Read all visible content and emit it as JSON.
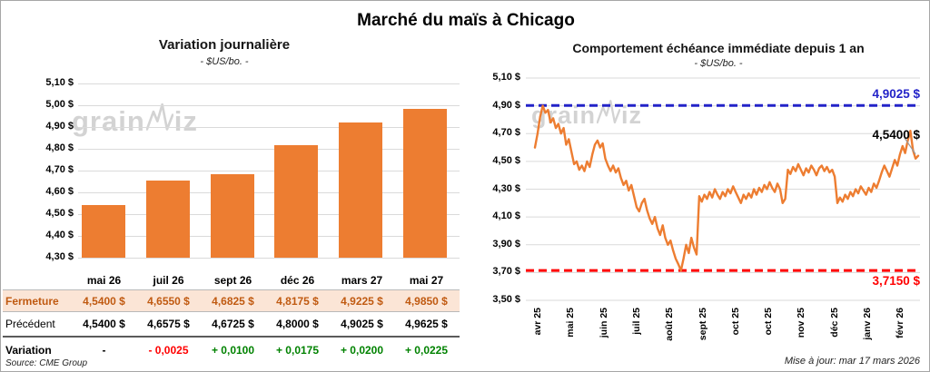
{
  "page": {
    "title": "Marché du maïs à Chicago",
    "source": "Source: CME Group",
    "updated": "Mise à jour: mar 17 mars 2026",
    "watermark": "grainwiz"
  },
  "table": {
    "columns": [
      "mai 26",
      "juil 26",
      "sept 26",
      "déc 26",
      "mars 27",
      "mai 27"
    ],
    "rows": [
      {
        "key": "fermeture",
        "label": "Fermeture",
        "values": [
          "4,5400 $",
          "4,6550 $",
          "4,6825 $",
          "4,8175 $",
          "4,9225 $",
          "4,9850 $"
        ]
      },
      {
        "key": "precedent",
        "label": "Précédent",
        "values": [
          "4,5400 $",
          "4,6575 $",
          "4,6725 $",
          "4,8000 $",
          "4,9025 $",
          "4,9625 $"
        ]
      },
      {
        "key": "variation",
        "label": "Variation",
        "values": [
          "-",
          "- 0,0025",
          "+ 0,0100",
          "+ 0,0175",
          "+ 0,0200",
          "+ 0,0225"
        ],
        "value_colors": [
          "#000000",
          "#FF0000",
          "#008200",
          "#008200",
          "#008200",
          "#008200"
        ]
      }
    ]
  },
  "chart_data": [
    {
      "type": "bar",
      "title": "Variation journalière",
      "subtitle": "- $US/bo. -",
      "categories": [
        "mai 26",
        "juil 26",
        "sept 26",
        "déc 26",
        "mars 27",
        "mai 27"
      ],
      "values": [
        4.54,
        4.655,
        4.6825,
        4.8175,
        4.9225,
        4.985
      ],
      "ylim": [
        4.3,
        5.1
      ],
      "ytick_step": 0.1,
      "bar_color": "#ED7D31",
      "grid": true,
      "currency_suffix": " $"
    },
    {
      "type": "line",
      "title": "Comportement échéance immédiate depuis 1 an",
      "subtitle": "- $US/bo. -",
      "x_labels": [
        "avr 25",
        "mai 25",
        "juin 25",
        "juil 25",
        "août 25",
        "sept 25",
        "oct 25",
        "oct 25",
        "nov 25",
        "déc 25",
        "janv 26",
        "févr 26"
      ],
      "values": [
        4.6,
        4.7,
        4.82,
        4.9,
        4.85,
        4.87,
        4.78,
        4.81,
        4.74,
        4.77,
        4.7,
        4.74,
        4.62,
        4.66,
        4.57,
        4.48,
        4.5,
        4.44,
        4.47,
        4.43,
        4.5,
        4.46,
        4.55,
        4.62,
        4.65,
        4.6,
        4.63,
        4.52,
        4.47,
        4.43,
        4.47,
        4.42,
        4.45,
        4.38,
        4.33,
        4.36,
        4.29,
        4.33,
        4.25,
        4.17,
        4.14,
        4.2,
        4.23,
        4.15,
        4.09,
        4.05,
        4.1,
        4.02,
        3.97,
        4.04,
        3.95,
        3.9,
        3.93,
        3.86,
        3.8,
        3.76,
        3.715,
        3.8,
        3.9,
        3.84,
        3.95,
        3.88,
        3.83,
        4.25,
        4.21,
        4.26,
        4.23,
        4.28,
        4.24,
        4.3,
        4.26,
        4.23,
        4.28,
        4.25,
        4.3,
        4.27,
        4.32,
        4.28,
        4.24,
        4.2,
        4.26,
        4.23,
        4.27,
        4.24,
        4.3,
        4.26,
        4.31,
        4.28,
        4.33,
        4.3,
        4.35,
        4.31,
        4.28,
        4.34,
        4.3,
        4.2,
        4.23,
        4.44,
        4.41,
        4.46,
        4.43,
        4.48,
        4.44,
        4.4,
        4.45,
        4.42,
        4.47,
        4.44,
        4.4,
        4.45,
        4.47,
        4.43,
        4.46,
        4.42,
        4.44,
        4.39,
        4.2,
        4.24,
        4.21,
        4.26,
        4.23,
        4.28,
        4.25,
        4.3,
        4.27,
        4.32,
        4.29,
        4.26,
        4.31,
        4.28,
        4.34,
        4.31,
        4.36,
        4.42,
        4.47,
        4.43,
        4.39,
        4.45,
        4.51,
        4.47,
        4.55,
        4.61,
        4.56,
        4.65,
        4.72,
        4.58,
        4.52,
        4.54
      ],
      "ylim": [
        3.5,
        5.1
      ],
      "ytick_step": 0.2,
      "line_color": "#ED7D31",
      "grid": true,
      "currency_suffix": " $",
      "annotations": [
        {
          "name": "high-line",
          "label": "4,9025 $",
          "value": 4.9025,
          "color": "#2323C8",
          "style": "dashed"
        },
        {
          "name": "last-price",
          "label": "4,5400 $",
          "value": 4.54,
          "color": "#000000",
          "style": "label-only"
        },
        {
          "name": "low-line",
          "label": "3,7150 $",
          "value": 3.715,
          "color": "#FF0000",
          "style": "dashed"
        }
      ]
    }
  ]
}
